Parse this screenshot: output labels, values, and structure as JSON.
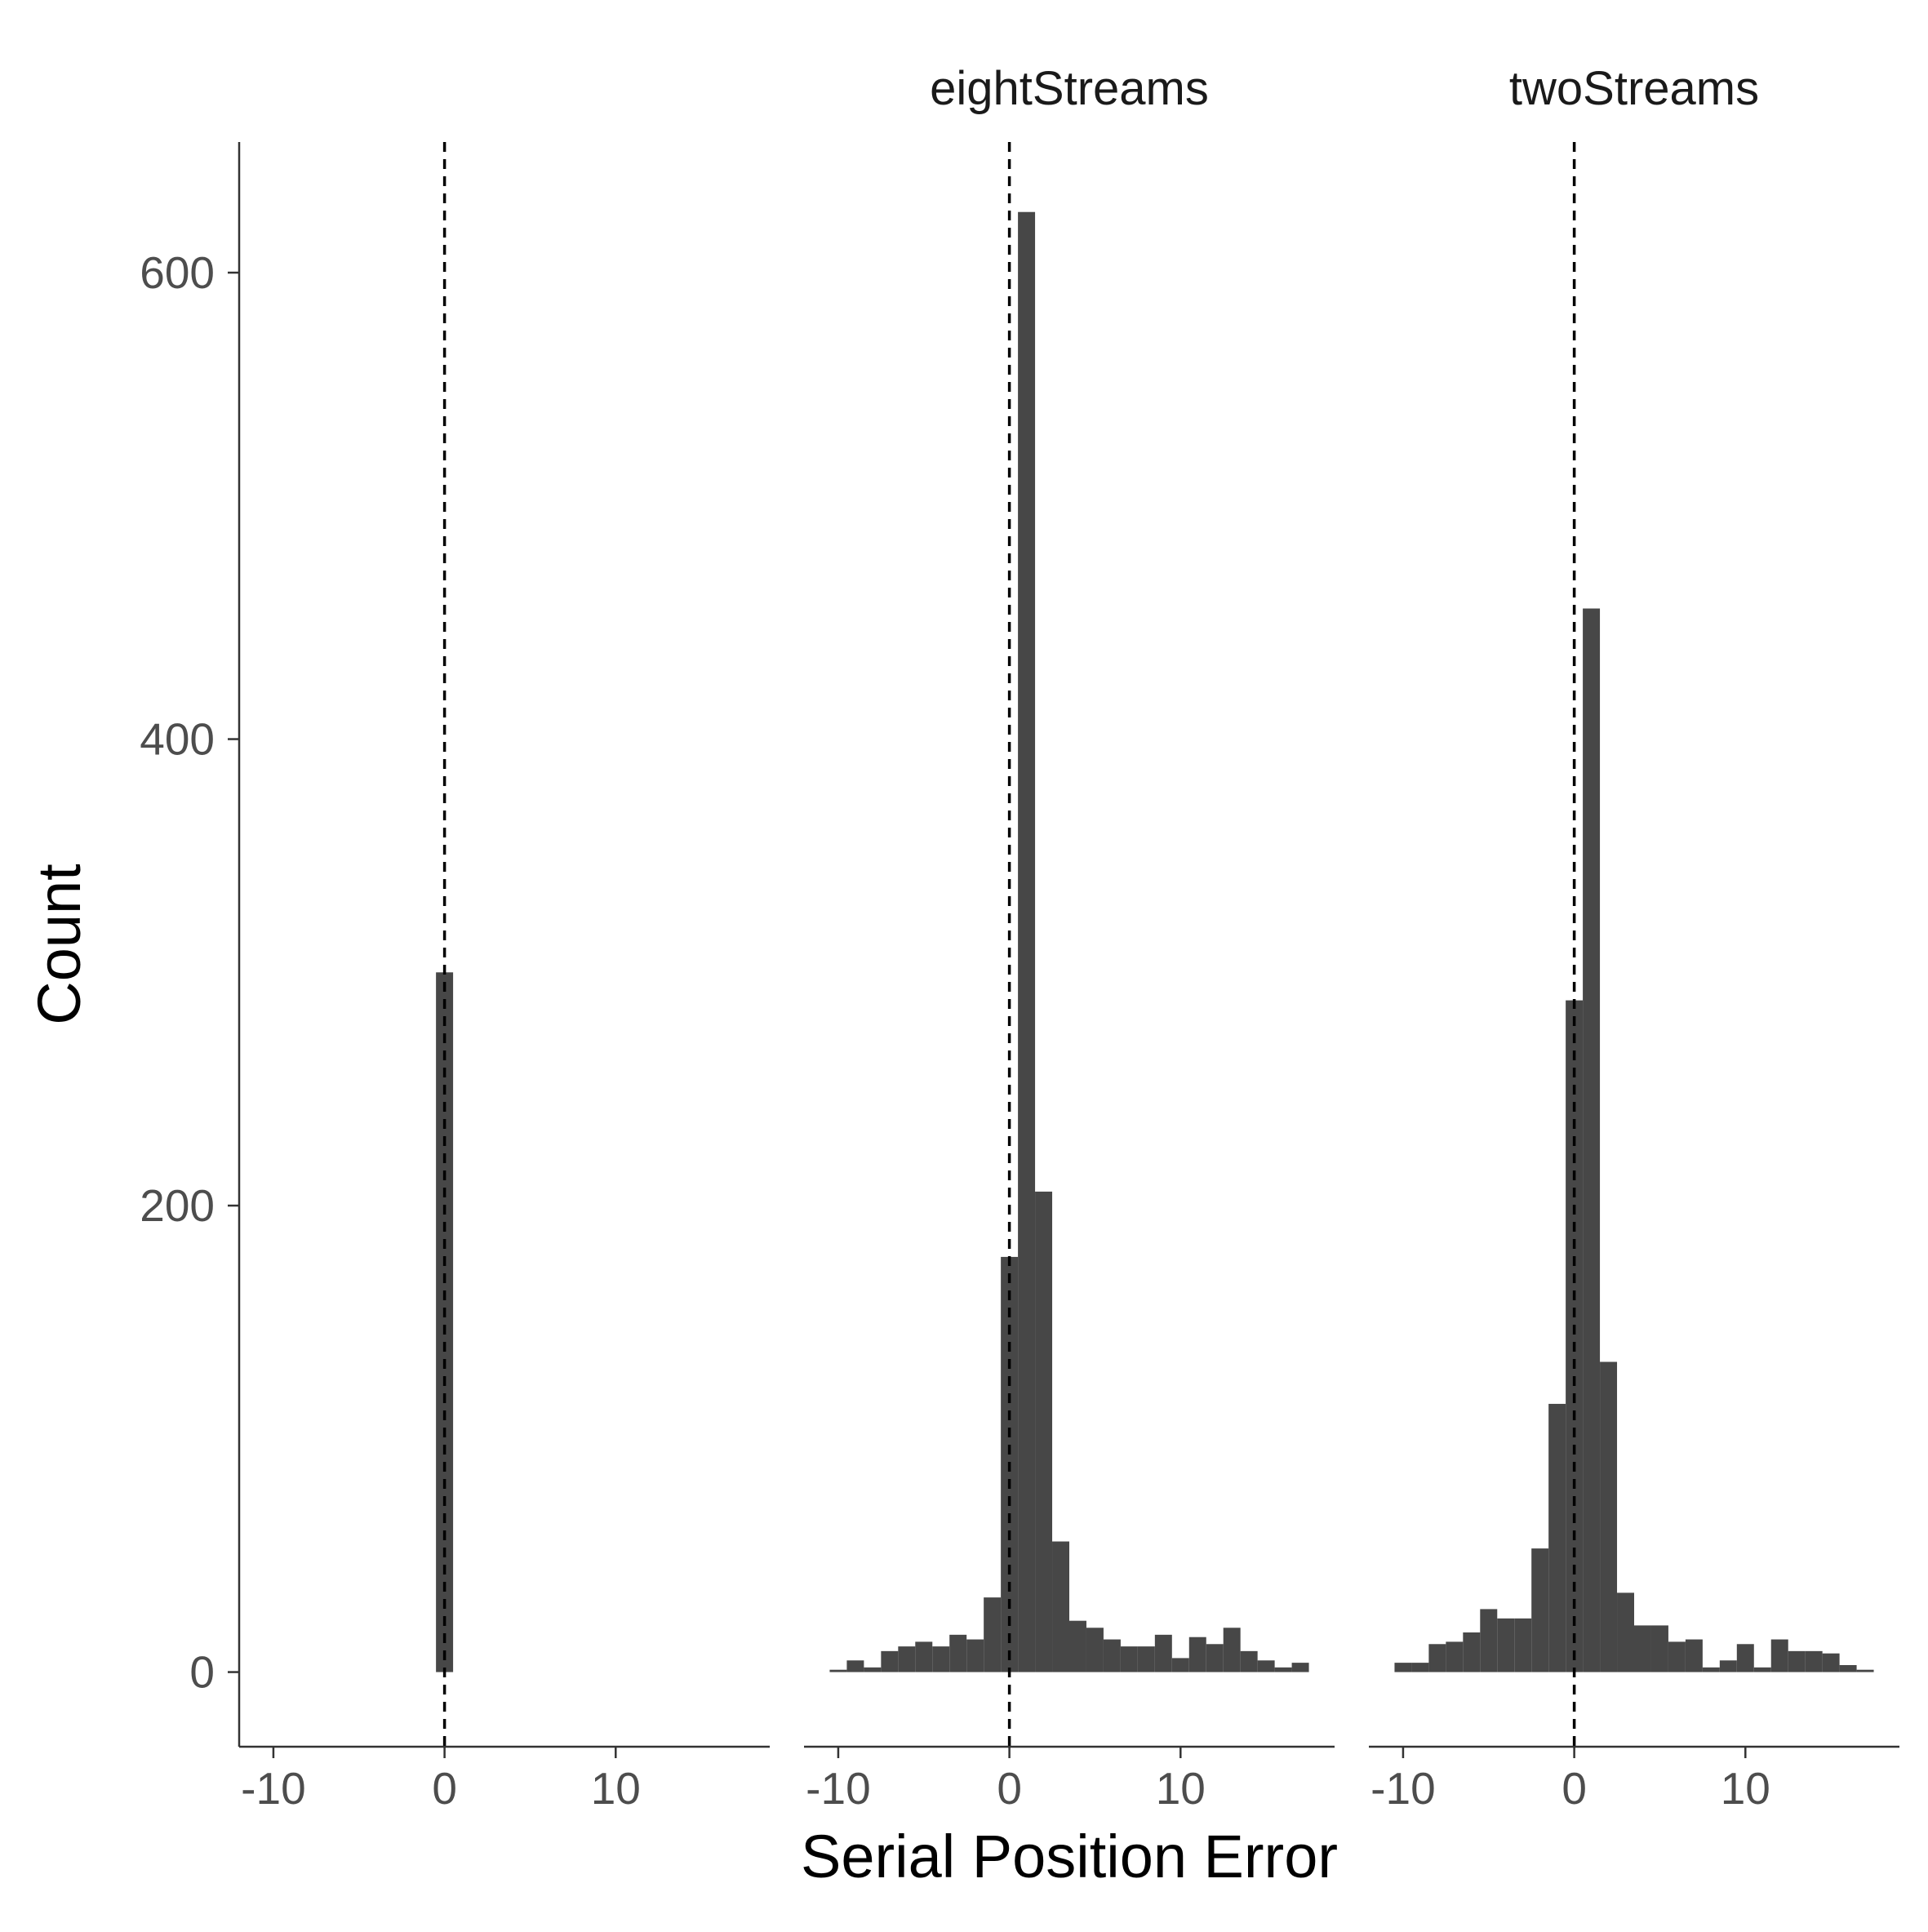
{
  "chart_data": {
    "type": "bar",
    "xlabel": "Serial Position Error",
    "ylabel": "Count",
    "xlim": [
      -12,
      19
    ],
    "ylim": [
      -32,
      656
    ],
    "x_ticks": [
      -10,
      0,
      10
    ],
    "y_ticks": [
      0,
      200,
      400,
      600
    ],
    "bin_width": 1,
    "reference_line_x": 0,
    "grid": false,
    "legend": "none",
    "bar_color": "#474747",
    "reference_line_color": "#000000",
    "facets": [
      {
        "title": "",
        "bars": [
          {
            "x": 0,
            "y": 300
          }
        ]
      },
      {
        "title": "eightStreams",
        "bars": [
          {
            "x": -10,
            "y": 1
          },
          {
            "x": -9,
            "y": 5
          },
          {
            "x": -8,
            "y": 2
          },
          {
            "x": -7,
            "y": 9
          },
          {
            "x": -6,
            "y": 11
          },
          {
            "x": -5,
            "y": 13
          },
          {
            "x": -4,
            "y": 11
          },
          {
            "x": -3,
            "y": 16
          },
          {
            "x": -2,
            "y": 14
          },
          {
            "x": -1,
            "y": 32
          },
          {
            "x": 0,
            "y": 178
          },
          {
            "x": 1,
            "y": 626
          },
          {
            "x": 2,
            "y": 206
          },
          {
            "x": 3,
            "y": 56
          },
          {
            "x": 4,
            "y": 22
          },
          {
            "x": 5,
            "y": 19
          },
          {
            "x": 6,
            "y": 14
          },
          {
            "x": 7,
            "y": 11
          },
          {
            "x": 8,
            "y": 11
          },
          {
            "x": 9,
            "y": 16
          },
          {
            "x": 10,
            "y": 6
          },
          {
            "x": 11,
            "y": 15
          },
          {
            "x": 12,
            "y": 12
          },
          {
            "x": 13,
            "y": 19
          },
          {
            "x": 14,
            "y": 9
          },
          {
            "x": 15,
            "y": 5
          },
          {
            "x": 16,
            "y": 2
          },
          {
            "x": 17,
            "y": 4
          }
        ]
      },
      {
        "title": "twoStreams",
        "bars": [
          {
            "x": -10,
            "y": 4
          },
          {
            "x": -9,
            "y": 4
          },
          {
            "x": -8,
            "y": 12
          },
          {
            "x": -7,
            "y": 13
          },
          {
            "x": -6,
            "y": 17
          },
          {
            "x": -5,
            "y": 27
          },
          {
            "x": -4,
            "y": 23
          },
          {
            "x": -3,
            "y": 23
          },
          {
            "x": -2,
            "y": 53
          },
          {
            "x": -1,
            "y": 115
          },
          {
            "x": 0,
            "y": 288
          },
          {
            "x": 1,
            "y": 456
          },
          {
            "x": 2,
            "y": 133
          },
          {
            "x": 3,
            "y": 34
          },
          {
            "x": 4,
            "y": 20
          },
          {
            "x": 5,
            "y": 20
          },
          {
            "x": 6,
            "y": 13
          },
          {
            "x": 7,
            "y": 14
          },
          {
            "x": 8,
            "y": 2
          },
          {
            "x": 9,
            "y": 5
          },
          {
            "x": 10,
            "y": 12
          },
          {
            "x": 11,
            "y": 2
          },
          {
            "x": 12,
            "y": 14
          },
          {
            "x": 13,
            "y": 9
          },
          {
            "x": 14,
            "y": 9
          },
          {
            "x": 15,
            "y": 8
          },
          {
            "x": 16,
            "y": 3
          },
          {
            "x": 17,
            "y": 1
          }
        ]
      }
    ]
  }
}
